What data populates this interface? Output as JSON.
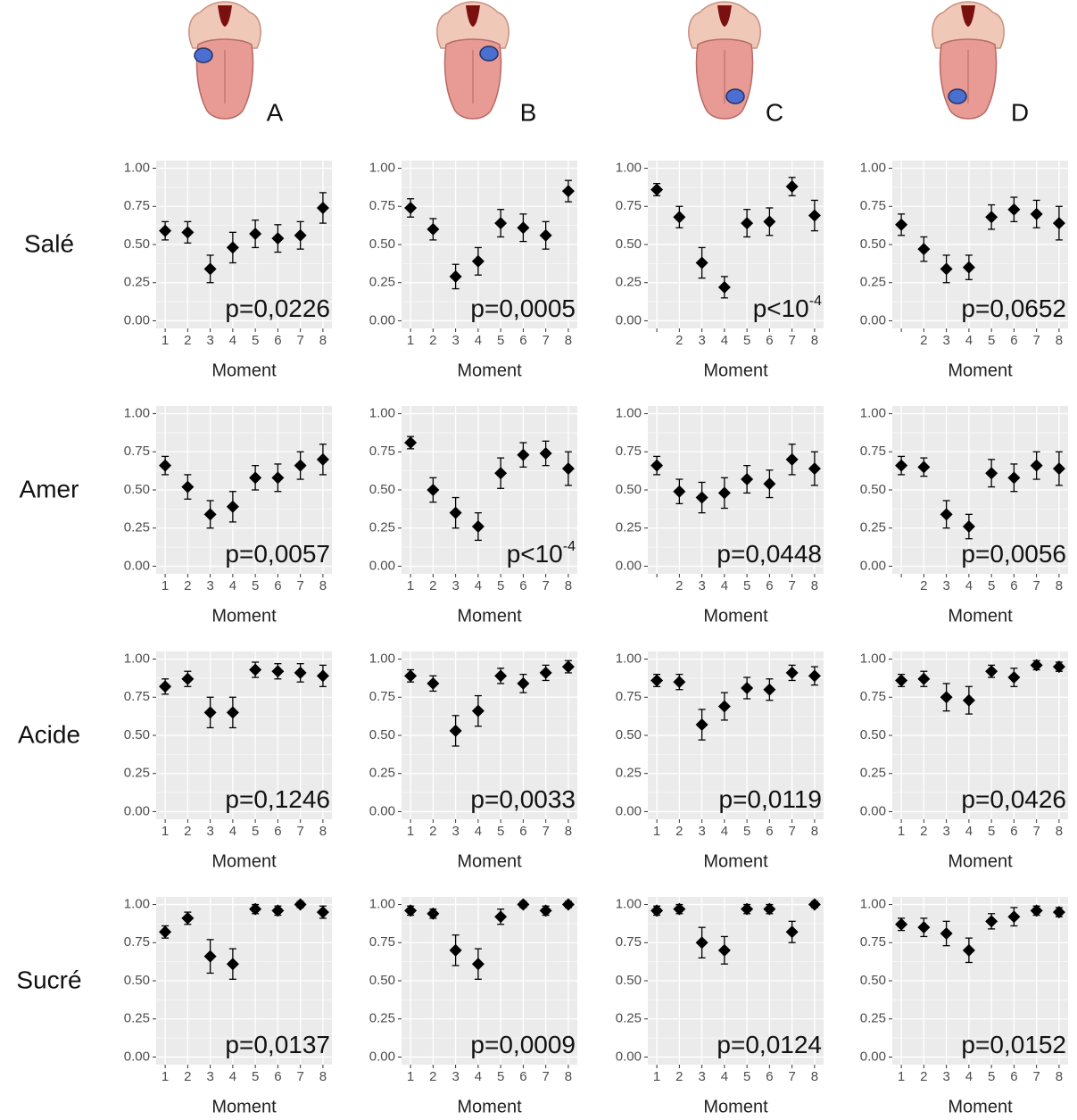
{
  "columns": [
    "A",
    "B",
    "C",
    "D"
  ],
  "rows": [
    "Salé",
    "Amer",
    "Acide",
    "Sucré"
  ],
  "chart_data": [
    {
      "type": "errorbar",
      "xlabel": "Moment",
      "categories": [
        "1",
        "2",
        "3",
        "4",
        "5",
        "6",
        "7",
        "8"
      ],
      "values": [
        0.59,
        0.58,
        0.34,
        0.48,
        0.57,
        0.54,
        0.56,
        0.74
      ],
      "errors": [
        0.06,
        0.07,
        0.09,
        0.1,
        0.09,
        0.09,
        0.09,
        0.1
      ],
      "annotation": "p=0,0226",
      "ylim": [
        -0.05,
        1.05
      ],
      "yticks": [
        {
          "value": 0,
          "label": "0.00"
        },
        {
          "value": 0.25,
          "label": "0.25"
        },
        {
          "value": 0.5,
          "label": "0.50"
        },
        {
          "value": 0.75,
          "label": "0.75"
        },
        {
          "value": 1,
          "label": "1.00"
        }
      ],
      "grid": true,
      "color": "#000000"
    },
    {
      "type": "errorbar",
      "xlabel": "Moment",
      "categories": [
        "1",
        "2",
        "3",
        "4",
        "5",
        "6",
        "7",
        "8"
      ],
      "values": [
        0.74,
        0.6,
        0.29,
        0.39,
        0.64,
        0.61,
        0.56,
        0.85
      ],
      "errors": [
        0.06,
        0.07,
        0.08,
        0.09,
        0.09,
        0.09,
        0.09,
        0.07
      ],
      "annotation": "p=0,0005",
      "ylim": [
        -0.05,
        1.05
      ],
      "yticks": [
        {
          "value": 0,
          "label": "0.00"
        },
        {
          "value": 0.25,
          "label": "0.25"
        },
        {
          "value": 0.5,
          "label": "0.50"
        },
        {
          "value": 0.75,
          "label": "0.75"
        },
        {
          "value": 1,
          "label": "1.00"
        }
      ],
      "grid": true,
      "color": "#000000"
    },
    {
      "type": "errorbar",
      "xlabel": "Moment",
      "categories": [
        null,
        "2",
        "3",
        "4",
        "5",
        "6",
        "7",
        "8"
      ],
      "values": [
        0.86,
        0.68,
        0.38,
        0.22,
        0.64,
        0.65,
        0.88,
        0.69
      ],
      "errors": [
        0.04,
        0.07,
        0.1,
        0.07,
        0.09,
        0.09,
        0.06,
        0.1
      ],
      "annotation": "p<10",
      "annotation_exponent": "-4",
      "ylim": [
        -0.05,
        1.05
      ],
      "yticks": [
        {
          "value": 0,
          "label": "0.00"
        },
        {
          "value": 0.25,
          "label": "0.25"
        },
        {
          "value": 0.5,
          "label": "0.50"
        },
        {
          "value": 0.75,
          "label": "0.75"
        },
        {
          "value": 1,
          "label": "1.00"
        }
      ],
      "grid": true,
      "color": "#000000"
    },
    {
      "type": "errorbar",
      "xlabel": "Moment",
      "categories": [
        null,
        "2",
        "3",
        "4",
        "5",
        "6",
        "7",
        "8"
      ],
      "values": [
        0.63,
        0.47,
        0.34,
        0.35,
        0.68,
        0.73,
        0.7,
        0.64
      ],
      "errors": [
        0.07,
        0.08,
        0.09,
        0.08,
        0.08,
        0.08,
        0.09,
        0.11
      ],
      "annotation": "p=0,0652",
      "ylim": [
        -0.05,
        1.05
      ],
      "yticks": [
        {
          "value": 0,
          "label": "0.00"
        },
        {
          "value": 0.25,
          "label": "0.25"
        },
        {
          "value": 0.5,
          "label": "0.50"
        },
        {
          "value": 0.75,
          "label": "0.75"
        },
        {
          "value": 1,
          "label": "1.00"
        }
      ],
      "grid": true,
      "color": "#000000"
    },
    {
      "type": "errorbar",
      "xlabel": "Moment",
      "categories": [
        "1",
        "2",
        "3",
        "4",
        "5",
        "6",
        "7",
        "8"
      ],
      "values": [
        0.66,
        0.52,
        0.34,
        0.39,
        0.58,
        0.58,
        0.66,
        0.7
      ],
      "errors": [
        0.06,
        0.08,
        0.09,
        0.1,
        0.08,
        0.09,
        0.09,
        0.1
      ],
      "annotation": "p=0,0057",
      "ylim": [
        -0.05,
        1.05
      ],
      "yticks": [
        {
          "value": 0,
          "label": "0.00"
        },
        {
          "value": 0.25,
          "label": "0.25"
        },
        {
          "value": 0.5,
          "label": "0.50"
        },
        {
          "value": 0.75,
          "label": "0.75"
        },
        {
          "value": 1,
          "label": "1.00"
        }
      ],
      "grid": true,
      "color": "#000000"
    },
    {
      "type": "errorbar",
      "xlabel": "Moment",
      "categories": [
        "1",
        "2",
        "3",
        "4",
        "5",
        "6",
        "7",
        "8"
      ],
      "values": [
        0.81,
        0.5,
        0.35,
        0.26,
        0.61,
        0.73,
        0.74,
        0.64
      ],
      "errors": [
        0.04,
        0.08,
        0.1,
        0.09,
        0.1,
        0.08,
        0.08,
        0.11
      ],
      "annotation": "p<10",
      "annotation_exponent": "-4",
      "ylim": [
        -0.05,
        1.05
      ],
      "yticks": [
        {
          "value": 0,
          "label": "0.00"
        },
        {
          "value": 0.25,
          "label": "0.25"
        },
        {
          "value": 0.5,
          "label": "0.50"
        },
        {
          "value": 0.75,
          "label": "0.75"
        },
        {
          "value": 1,
          "label": "1.00"
        }
      ],
      "grid": true,
      "color": "#000000"
    },
    {
      "type": "errorbar",
      "xlabel": "Moment",
      "categories": [
        null,
        "2",
        "3",
        "4",
        "5",
        "6",
        "7",
        "8"
      ],
      "values": [
        0.66,
        0.49,
        0.45,
        0.48,
        0.57,
        0.54,
        0.7,
        0.64
      ],
      "errors": [
        0.06,
        0.08,
        0.1,
        0.1,
        0.09,
        0.09,
        0.1,
        0.11
      ],
      "annotation": "p=0,0448",
      "ylim": [
        -0.05,
        1.05
      ],
      "yticks": [
        {
          "value": 0,
          "label": "0.00"
        },
        {
          "value": 0.25,
          "label": "0.25"
        },
        {
          "value": 0.5,
          "label": "0.50"
        },
        {
          "value": 0.75,
          "label": "0.75"
        },
        {
          "value": 1,
          "label": "1.00"
        }
      ],
      "grid": true,
      "color": "#000000"
    },
    {
      "type": "errorbar",
      "xlabel": "Moment",
      "categories": [
        null,
        "2",
        "3",
        "4",
        "5",
        "6",
        "7",
        "8"
      ],
      "values": [
        0.66,
        0.65,
        0.34,
        0.26,
        0.61,
        0.58,
        0.66,
        0.64
      ],
      "errors": [
        0.06,
        0.06,
        0.09,
        0.08,
        0.09,
        0.09,
        0.09,
        0.11
      ],
      "annotation": "p=0,0056",
      "ylim": [
        -0.05,
        1.05
      ],
      "yticks": [
        {
          "value": 0,
          "label": "0.00"
        },
        {
          "value": 0.25,
          "label": "0.25"
        },
        {
          "value": 0.5,
          "label": "0.50"
        },
        {
          "value": 0.75,
          "label": "0.75"
        },
        {
          "value": 1,
          "label": "1.00"
        }
      ],
      "grid": true,
      "color": "#000000"
    },
    {
      "type": "errorbar",
      "xlabel": "Moment",
      "categories": [
        "1",
        "2",
        "3",
        "4",
        "5",
        "6",
        "7",
        "8"
      ],
      "values": [
        0.82,
        0.87,
        0.65,
        0.65,
        0.93,
        0.92,
        0.91,
        0.89
      ],
      "errors": [
        0.05,
        0.05,
        0.1,
        0.1,
        0.05,
        0.05,
        0.06,
        0.07
      ],
      "annotation": "p=0,1246",
      "ylim": [
        -0.05,
        1.05
      ],
      "yticks": [
        {
          "value": 0,
          "label": "0.00"
        },
        {
          "value": 0.25,
          "label": "0.25"
        },
        {
          "value": 0.5,
          "label": "0.50"
        },
        {
          "value": 0.75,
          "label": "0.75"
        },
        {
          "value": 1,
          "label": "1.00"
        }
      ],
      "grid": true,
      "color": "#000000"
    },
    {
      "type": "errorbar",
      "xlabel": "Moment",
      "categories": [
        "1",
        "2",
        "3",
        "4",
        "5",
        "6",
        "7",
        "8"
      ],
      "values": [
        0.89,
        0.84,
        0.53,
        0.66,
        0.89,
        0.84,
        0.91,
        0.95
      ],
      "errors": [
        0.04,
        0.05,
        0.1,
        0.1,
        0.05,
        0.06,
        0.05,
        0.04
      ],
      "annotation": "p=0,0033",
      "ylim": [
        -0.05,
        1.05
      ],
      "yticks": [
        {
          "value": 0,
          "label": "0.00"
        },
        {
          "value": 0.25,
          "label": "0.25"
        },
        {
          "value": 0.5,
          "label": "0.50"
        },
        {
          "value": 0.75,
          "label": "0.75"
        },
        {
          "value": 1,
          "label": "1.00"
        }
      ],
      "grid": true,
      "color": "#000000"
    },
    {
      "type": "errorbar",
      "xlabel": "Moment",
      "categories": [
        "1",
        "2",
        "3",
        "4",
        "5",
        "6",
        "7",
        "8"
      ],
      "values": [
        0.86,
        0.85,
        0.57,
        0.69,
        0.81,
        0.8,
        0.91,
        0.89
      ],
      "errors": [
        0.04,
        0.05,
        0.1,
        0.09,
        0.07,
        0.07,
        0.05,
        0.06
      ],
      "annotation": "p=0,0119",
      "ylim": [
        -0.05,
        1.05
      ],
      "yticks": [
        {
          "value": 0,
          "label": "0.00"
        },
        {
          "value": 0.25,
          "label": "0.25"
        },
        {
          "value": 0.5,
          "label": "0.50"
        },
        {
          "value": 0.75,
          "label": "0.75"
        },
        {
          "value": 1,
          "label": "1.00"
        }
      ],
      "grid": true,
      "color": "#000000"
    },
    {
      "type": "errorbar",
      "xlabel": "Moment",
      "categories": [
        "1",
        "2",
        "3",
        "4",
        "5",
        "6",
        "7",
        "8"
      ],
      "values": [
        0.86,
        0.87,
        0.75,
        0.73,
        0.92,
        0.88,
        0.96,
        0.95
      ],
      "errors": [
        0.04,
        0.05,
        0.09,
        0.09,
        0.04,
        0.06,
        0.03,
        0.03
      ],
      "annotation": "p=0,0426",
      "ylim": [
        -0.05,
        1.05
      ],
      "yticks": [
        {
          "value": 0,
          "label": "0.00"
        },
        {
          "value": 0.25,
          "label": "0.25"
        },
        {
          "value": 0.5,
          "label": "0.50"
        },
        {
          "value": 0.75,
          "label": "0.75"
        },
        {
          "value": 1,
          "label": "1.00"
        }
      ],
      "grid": true,
      "color": "#000000"
    },
    {
      "type": "errorbar",
      "xlabel": "Moment",
      "categories": [
        "1",
        "2",
        "3",
        "4",
        "5",
        "6",
        "7",
        "8"
      ],
      "values": [
        0.82,
        0.91,
        0.66,
        0.61,
        0.97,
        0.96,
        1,
        0.95
      ],
      "errors": [
        0.04,
        0.04,
        0.11,
        0.1,
        0.03,
        0.03,
        0.02,
        0.04
      ],
      "annotation": "p=0,0137",
      "ylim": [
        -0.05,
        1.05
      ],
      "yticks": [
        {
          "value": 0,
          "label": "0.00"
        },
        {
          "value": 0.25,
          "label": "0.25"
        },
        {
          "value": 0.5,
          "label": "0.50"
        },
        {
          "value": 0.75,
          "label": "0.75"
        },
        {
          "value": 1,
          "label": "1.00"
        }
      ],
      "grid": true,
      "color": "#000000"
    },
    {
      "type": "errorbar",
      "xlabel": "Moment",
      "categories": [
        "1",
        "2",
        "3",
        "4",
        "5",
        "6",
        "7",
        "8"
      ],
      "values": [
        0.96,
        0.94,
        0.7,
        0.61,
        0.92,
        1,
        0.96,
        1
      ],
      "errors": [
        0.03,
        0.03,
        0.1,
        0.1,
        0.05,
        0.02,
        0.03,
        0.02
      ],
      "annotation": "p=0,0009",
      "ylim": [
        -0.05,
        1.05
      ],
      "yticks": [
        {
          "value": 0,
          "label": "0.00"
        },
        {
          "value": 0.25,
          "label": "0.25"
        },
        {
          "value": 0.5,
          "label": "0.50"
        },
        {
          "value": 0.75,
          "label": "0.75"
        },
        {
          "value": 1,
          "label": "1.00"
        }
      ],
      "grid": true,
      "color": "#000000"
    },
    {
      "type": "errorbar",
      "xlabel": "Moment",
      "categories": [
        "1",
        "2",
        "3",
        "4",
        "5",
        "6",
        "7",
        "8"
      ],
      "values": [
        0.96,
        0.97,
        0.75,
        0.7,
        0.97,
        0.97,
        0.82,
        1
      ],
      "errors": [
        0.03,
        0.03,
        0.1,
        0.09,
        0.03,
        0.03,
        0.07,
        0.02
      ],
      "annotation": "p=0,0124",
      "ylim": [
        -0.05,
        1.05
      ],
      "yticks": [
        {
          "value": 0,
          "label": "0.00"
        },
        {
          "value": 0.25,
          "label": "0.25"
        },
        {
          "value": 0.5,
          "label": "0.50"
        },
        {
          "value": 0.75,
          "label": "0.75"
        },
        {
          "value": 1,
          "label": "1.00"
        }
      ],
      "grid": true,
      "color": "#000000"
    },
    {
      "type": "errorbar",
      "xlabel": "Moment",
      "categories": [
        "1",
        "2",
        "3",
        "4",
        "5",
        "6",
        "7",
        "8"
      ],
      "values": [
        0.87,
        0.85,
        0.81,
        0.7,
        0.89,
        0.92,
        0.96,
        0.95
      ],
      "errors": [
        0.04,
        0.06,
        0.08,
        0.08,
        0.05,
        0.06,
        0.03,
        0.03
      ],
      "annotation": "p=0,0152",
      "ylim": [
        -0.05,
        1.05
      ],
      "yticks": [
        {
          "value": 0,
          "label": "0.00"
        },
        {
          "value": 0.25,
          "label": "0.25"
        },
        {
          "value": 0.5,
          "label": "0.50"
        },
        {
          "value": 0.75,
          "label": "0.75"
        },
        {
          "value": 1,
          "label": "1.00"
        }
      ],
      "grid": true,
      "color": "#000000"
    }
  ]
}
